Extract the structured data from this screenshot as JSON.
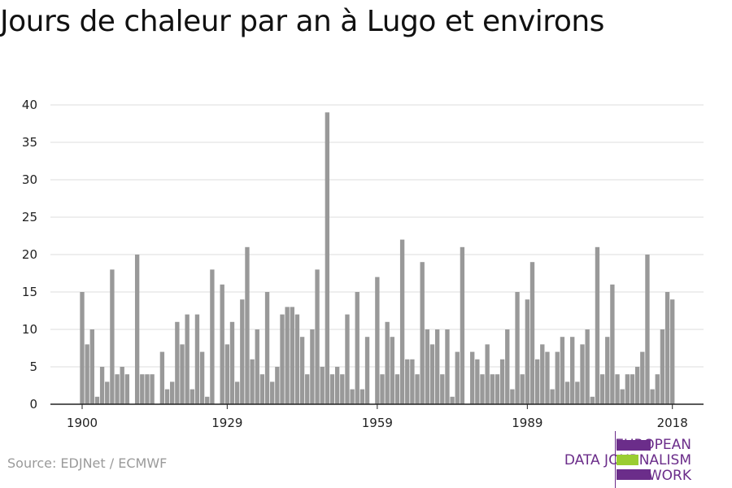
{
  "title": "Jours de chaleur par an à Lugo et environs",
  "source": "Source: EDJNet / ECMWF",
  "logo": {
    "lines": [
      "EUROPEAN",
      "DATA JOURNALISM",
      "NETWORK"
    ],
    "color_purple": "#6b2d8a",
    "color_green": "#9acd32"
  },
  "colors": {
    "bar": "#999999",
    "grid": "#dddddd",
    "axis": "#222222"
  },
  "chart_data": {
    "type": "bar",
    "title": "Jours de chaleur par an à Lugo et environs",
    "xlabel": "",
    "ylabel": "",
    "x_start": 1900,
    "x_end": 2018,
    "x_ticks": [
      1900,
      1929,
      1959,
      1989,
      2018
    ],
    "y_ticks": [
      0,
      5,
      10,
      15,
      20,
      25,
      30,
      35,
      40
    ],
    "ylim": [
      0,
      40
    ],
    "grid": true,
    "years": [
      1900,
      1901,
      1902,
      1903,
      1904,
      1905,
      1906,
      1907,
      1908,
      1909,
      1910,
      1911,
      1912,
      1913,
      1914,
      1915,
      1916,
      1917,
      1918,
      1919,
      1920,
      1921,
      1922,
      1923,
      1924,
      1925,
      1926,
      1927,
      1928,
      1929,
      1930,
      1931,
      1932,
      1933,
      1934,
      1935,
      1936,
      1937,
      1938,
      1939,
      1940,
      1941,
      1942,
      1943,
      1944,
      1945,
      1946,
      1947,
      1948,
      1949,
      1950,
      1951,
      1952,
      1953,
      1954,
      1955,
      1956,
      1957,
      1958,
      1959,
      1960,
      1961,
      1962,
      1963,
      1964,
      1965,
      1966,
      1967,
      1968,
      1969,
      1970,
      1971,
      1972,
      1973,
      1974,
      1975,
      1976,
      1977,
      1978,
      1979,
      1980,
      1981,
      1982,
      1983,
      1984,
      1985,
      1986,
      1987,
      1988,
      1989,
      1990,
      1991,
      1992,
      1993,
      1994,
      1995,
      1996,
      1997,
      1998,
      1999,
      2000,
      2001,
      2002,
      2003,
      2004,
      2005,
      2006,
      2007,
      2008,
      2009,
      2010,
      2011,
      2012,
      2013,
      2014,
      2015,
      2016,
      2017,
      2018
    ],
    "values": [
      15,
      8,
      10,
      1,
      5,
      3,
      18,
      4,
      5,
      4,
      0,
      20,
      4,
      4,
      4,
      0,
      7,
      2,
      3,
      11,
      8,
      12,
      2,
      12,
      7,
      1,
      18,
      0,
      16,
      8,
      11,
      3,
      14,
      21,
      6,
      10,
      4,
      15,
      3,
      5,
      12,
      13,
      13,
      12,
      9,
      4,
      10,
      18,
      5,
      39,
      4,
      5,
      4,
      12,
      2,
      15,
      2,
      9,
      0,
      17,
      4,
      11,
      9,
      4,
      22,
      6,
      6,
      4,
      19,
      10,
      8,
      10,
      4,
      10,
      1,
      7,
      21,
      0,
      7,
      6,
      4,
      8,
      4,
      4,
      6,
      10,
      2,
      15,
      4,
      14,
      19,
      6,
      8,
      7,
      2,
      7,
      9,
      3,
      9,
      3,
      8,
      10,
      1,
      21,
      4,
      9,
      16,
      4,
      2,
      4,
      4,
      5,
      7,
      20,
      2,
      4,
      10,
      15,
      14
    ]
  }
}
